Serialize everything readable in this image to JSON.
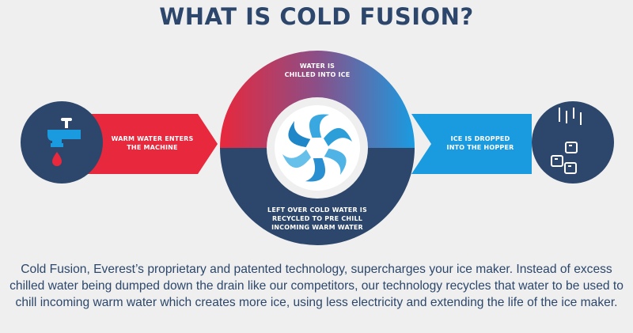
{
  "title": "WHAT IS COLD FUSION?",
  "steps": {
    "warm_water": "WARM WATER ENTERS THE MACHINE",
    "chilled": "WATER IS CHILLED INTO ICE",
    "dropped": "ICE IS DROPPED INTO THE HOPPER",
    "recycled": "LEFT OVER COLD WATER IS RECYCLED TO PRE CHILL INCOMING WARM WATER"
  },
  "icons": {
    "left": "faucet-icon",
    "center": "swirl-icon",
    "right": "ice-cubes-icon"
  },
  "colors": {
    "navy": "#2c476b",
    "red": "#e8283c",
    "blue": "#1a9be0",
    "background": "#efefef"
  },
  "description": "Cold Fusion, Everest’s proprietary and patented technology, supercharges your ice maker. Instead of excess chilled water being dumped down the drain like our competitors, our technology recycles that water to be used to chill incoming warm water which creates more ice, using less electricity and extending the life of the ice maker."
}
